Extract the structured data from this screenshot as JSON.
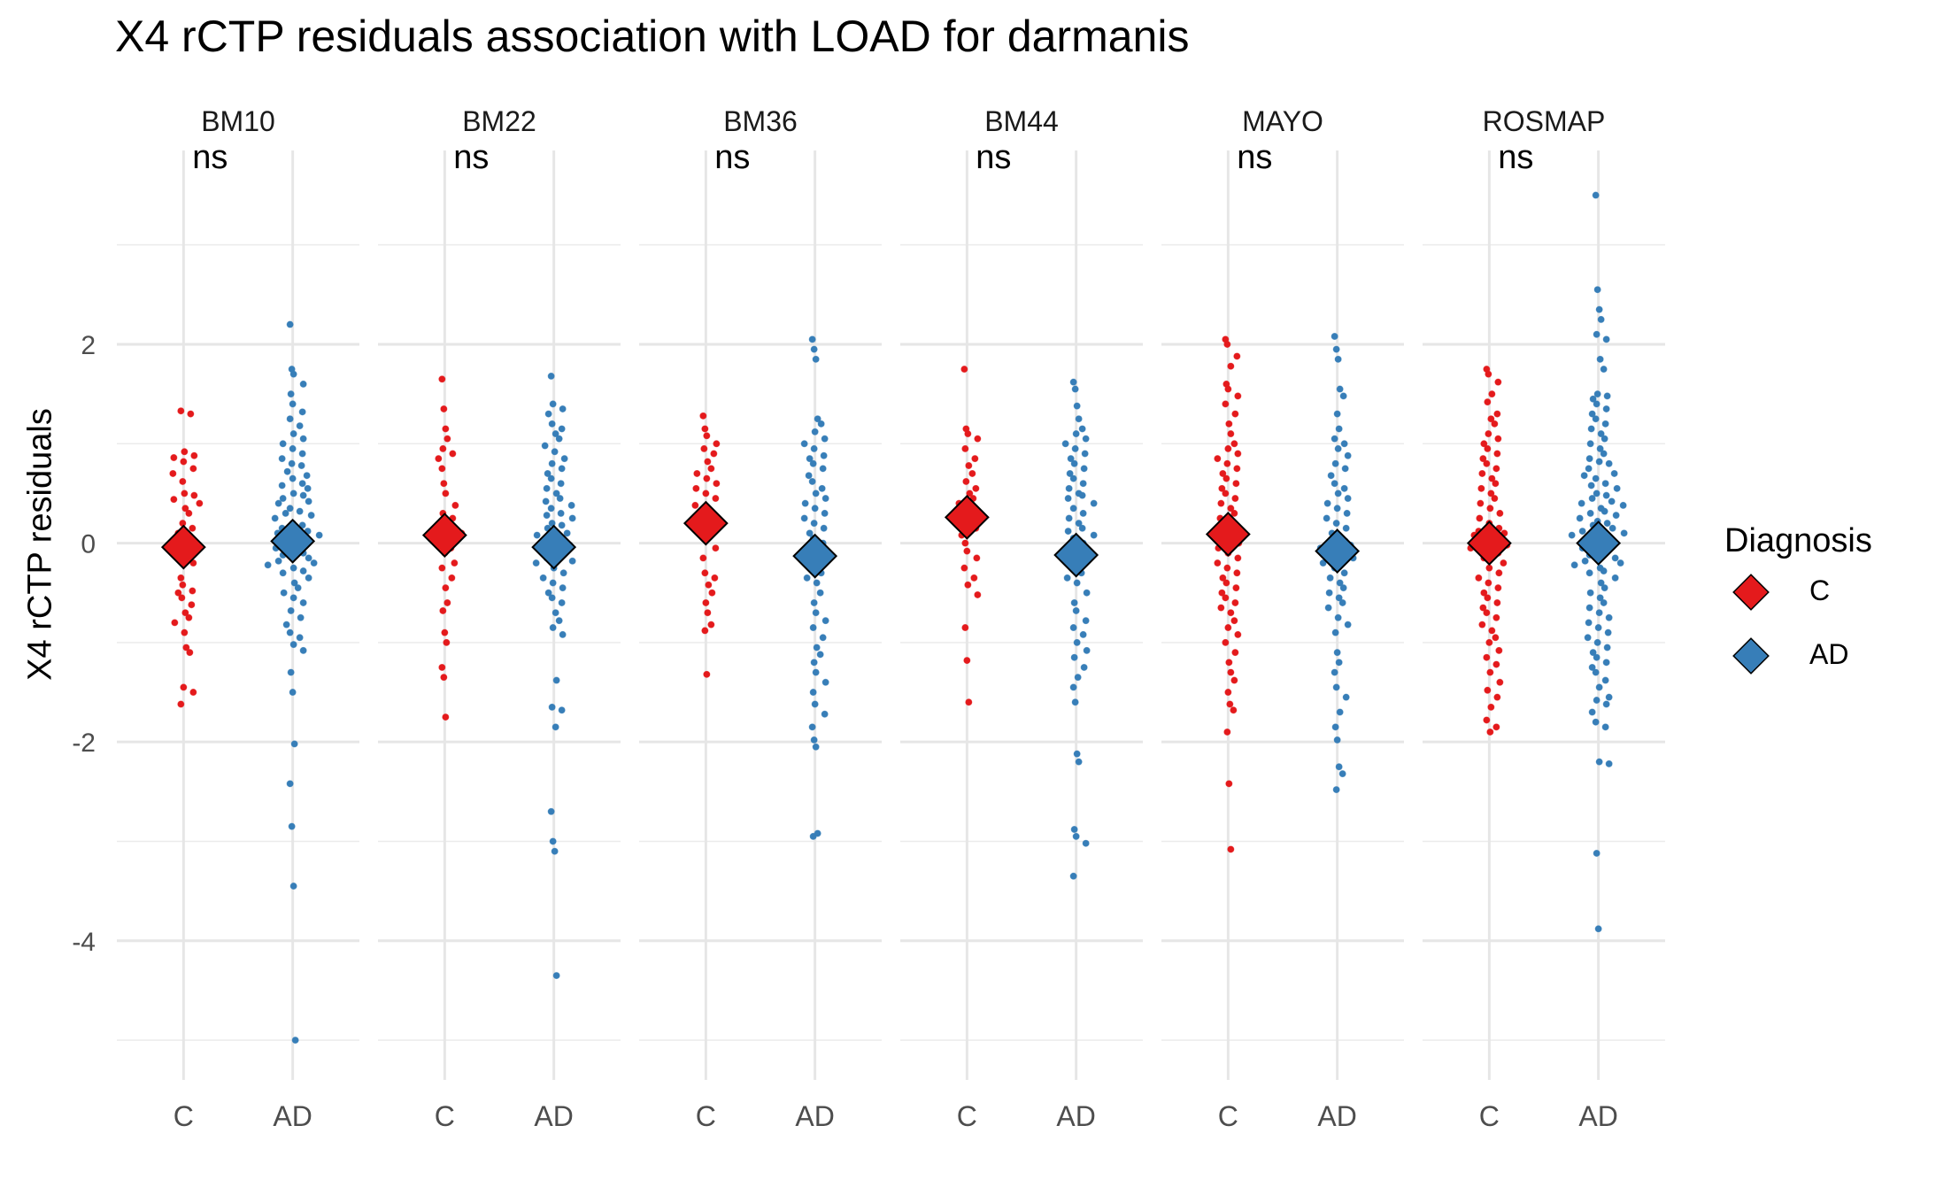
{
  "chart_data": {
    "type": "scatter",
    "title": "X4 rCTP residuals association with LOAD for darmanis",
    "ylabel": "X4 rCTP residuals",
    "ylim": [
      -5.4,
      3.95
    ],
    "yticks": [
      -4,
      -2,
      0,
      2
    ],
    "grid": true,
    "legend": {
      "title": "Diagnosis",
      "placement": "right"
    },
    "categories": [
      "C",
      "AD"
    ],
    "colors": {
      "C": "#E41A1C",
      "AD": "#377EB8"
    },
    "facets": [
      {
        "name": "BM10",
        "signif": "ns",
        "C": {
          "mean": -0.04,
          "points": [
            1.33,
            1.3,
            0.92,
            0.88,
            0.86,
            0.82,
            0.75,
            0.7,
            0.62,
            0.5,
            0.48,
            0.44,
            0.4,
            0.35,
            0.3,
            0.2,
            0.15,
            0.1,
            -0.05,
            -0.1,
            -0.2,
            -0.35,
            -0.42,
            -0.48,
            -0.5,
            -0.55,
            -0.62,
            -0.7,
            -0.75,
            -0.8,
            -0.9,
            -1.05,
            -1.1,
            -1.45,
            -1.5,
            -1.62
          ]
        },
        "AD": {
          "mean": 0.02,
          "points": [
            2.2,
            1.75,
            1.7,
            1.6,
            1.5,
            1.4,
            1.32,
            1.25,
            1.18,
            1.1,
            1.05,
            1.0,
            0.95,
            0.9,
            0.85,
            0.8,
            0.78,
            0.72,
            0.68,
            0.65,
            0.6,
            0.58,
            0.55,
            0.5,
            0.48,
            0.45,
            0.42,
            0.4,
            0.35,
            0.32,
            0.3,
            0.28,
            0.25,
            0.2,
            0.18,
            0.15,
            0.12,
            0.1,
            0.08,
            0.05,
            0.02,
            0.0,
            -0.02,
            -0.05,
            -0.08,
            -0.1,
            -0.12,
            -0.15,
            -0.18,
            -0.2,
            -0.22,
            -0.25,
            -0.28,
            -0.3,
            -0.35,
            -0.4,
            -0.45,
            -0.5,
            -0.55,
            -0.6,
            -0.68,
            -0.75,
            -0.82,
            -0.9,
            -0.95,
            -1.02,
            -1.08,
            -1.3,
            -1.5,
            -2.02,
            -2.42,
            -2.85,
            -3.45,
            -5.0
          ]
        }
      },
      {
        "name": "BM22",
        "signif": "ns",
        "C": {
          "mean": 0.08,
          "points": [
            1.65,
            1.35,
            1.15,
            1.05,
            0.95,
            0.9,
            0.85,
            0.75,
            0.6,
            0.5,
            0.38,
            0.3,
            0.25,
            0.22,
            0.18,
            0.15,
            0.1,
            0.05,
            -0.05,
            -0.1,
            -0.2,
            -0.25,
            -0.35,
            -0.45,
            -0.6,
            -0.68,
            -0.9,
            -1.0,
            -1.25,
            -1.35,
            -1.75
          ]
        },
        "AD": {
          "mean": -0.04,
          "points": [
            1.68,
            1.4,
            1.35,
            1.3,
            1.2,
            1.15,
            1.1,
            1.05,
            0.98,
            0.92,
            0.85,
            0.8,
            0.75,
            0.7,
            0.65,
            0.6,
            0.55,
            0.5,
            0.45,
            0.42,
            0.38,
            0.35,
            0.3,
            0.28,
            0.25,
            0.2,
            0.18,
            0.15,
            0.1,
            0.08,
            0.05,
            0.02,
            0.0,
            -0.02,
            -0.05,
            -0.08,
            -0.1,
            -0.15,
            -0.18,
            -0.2,
            -0.25,
            -0.3,
            -0.35,
            -0.4,
            -0.45,
            -0.5,
            -0.55,
            -0.6,
            -0.7,
            -0.78,
            -0.85,
            -0.92,
            -1.38,
            -1.65,
            -1.68,
            -1.85,
            -2.7,
            -3.0,
            -3.1,
            -4.35
          ]
        }
      },
      {
        "name": "BM36",
        "signif": "ns",
        "C": {
          "mean": 0.2,
          "points": [
            1.28,
            1.15,
            1.08,
            1.0,
            0.95,
            0.9,
            0.82,
            0.75,
            0.7,
            0.65,
            0.6,
            0.55,
            0.5,
            0.45,
            0.38,
            0.3,
            0.25,
            0.2,
            0.12,
            0.05,
            -0.05,
            -0.15,
            -0.3,
            -0.35,
            -0.42,
            -0.5,
            -0.6,
            -0.7,
            -0.82,
            -0.88,
            -1.32
          ]
        },
        "AD": {
          "mean": -0.13,
          "points": [
            2.05,
            1.95,
            1.85,
            1.25,
            1.2,
            1.12,
            1.05,
            1.0,
            0.95,
            0.88,
            0.85,
            0.8,
            0.75,
            0.68,
            0.62,
            0.55,
            0.5,
            0.45,
            0.4,
            0.35,
            0.3,
            0.25,
            0.2,
            0.15,
            0.1,
            0.05,
            0.0,
            -0.05,
            -0.1,
            -0.15,
            -0.2,
            -0.25,
            -0.3,
            -0.35,
            -0.4,
            -0.5,
            -0.6,
            -0.7,
            -0.78,
            -0.85,
            -0.95,
            -1.05,
            -1.12,
            -1.2,
            -1.3,
            -1.4,
            -1.5,
            -1.62,
            -1.72,
            -1.85,
            -1.98,
            -2.05,
            -2.92,
            -2.95
          ]
        }
      },
      {
        "name": "BM44",
        "signif": "ns",
        "C": {
          "mean": 0.26,
          "points": [
            1.75,
            1.15,
            1.1,
            1.05,
            0.95,
            0.85,
            0.78,
            0.7,
            0.62,
            0.55,
            0.5,
            0.45,
            0.4,
            0.35,
            0.3,
            0.22,
            0.15,
            0.08,
            0.0,
            -0.08,
            -0.15,
            -0.25,
            -0.35,
            -0.42,
            -0.52,
            -0.85,
            -1.18,
            -1.6
          ]
        },
        "AD": {
          "mean": -0.12,
          "points": [
            1.62,
            1.55,
            1.38,
            1.25,
            1.15,
            1.1,
            1.05,
            1.0,
            0.95,
            0.9,
            0.85,
            0.8,
            0.75,
            0.7,
            0.65,
            0.6,
            0.55,
            0.5,
            0.48,
            0.45,
            0.4,
            0.35,
            0.3,
            0.25,
            0.2,
            0.15,
            0.12,
            0.08,
            0.05,
            0.0,
            -0.05,
            -0.1,
            -0.15,
            -0.2,
            -0.25,
            -0.3,
            -0.35,
            -0.4,
            -0.5,
            -0.6,
            -0.68,
            -0.78,
            -0.85,
            -0.92,
            -1.0,
            -1.08,
            -1.15,
            -1.25,
            -1.35,
            -1.45,
            -1.6,
            -2.12,
            -2.2,
            -2.88,
            -2.95,
            -3.02,
            -3.35
          ]
        }
      },
      {
        "name": "MAYO",
        "signif": "ns",
        "C": {
          "mean": 0.09,
          "points": [
            2.05,
            2.0,
            1.88,
            1.78,
            1.6,
            1.55,
            1.48,
            1.4,
            1.3,
            1.2,
            1.1,
            1.0,
            0.95,
            0.9,
            0.85,
            0.8,
            0.75,
            0.7,
            0.65,
            0.6,
            0.55,
            0.5,
            0.45,
            0.4,
            0.35,
            0.3,
            0.25,
            0.2,
            0.15,
            0.1,
            0.05,
            0.0,
            -0.05,
            -0.1,
            -0.15,
            -0.2,
            -0.25,
            -0.3,
            -0.35,
            -0.4,
            -0.45,
            -0.5,
            -0.55,
            -0.6,
            -0.65,
            -0.7,
            -0.78,
            -0.85,
            -0.92,
            -1.0,
            -1.1,
            -1.2,
            -1.3,
            -1.38,
            -1.5,
            -1.62,
            -1.68,
            -1.9,
            -2.42,
            -3.08
          ]
        },
        "AD": {
          "mean": -0.08,
          "points": [
            2.08,
            1.95,
            1.85,
            1.55,
            1.48,
            1.3,
            1.15,
            1.05,
            1.0,
            0.95,
            0.88,
            0.8,
            0.75,
            0.68,
            0.6,
            0.55,
            0.5,
            0.45,
            0.4,
            0.35,
            0.3,
            0.25,
            0.2,
            0.15,
            0.1,
            0.05,
            0.02,
            0.0,
            -0.02,
            -0.05,
            -0.08,
            -0.1,
            -0.12,
            -0.15,
            -0.2,
            -0.25,
            -0.3,
            -0.35,
            -0.4,
            -0.45,
            -0.5,
            -0.55,
            -0.6,
            -0.65,
            -0.75,
            -0.82,
            -0.9,
            -1.1,
            -1.2,
            -1.3,
            -1.45,
            -1.55,
            -1.7,
            -1.85,
            -1.98,
            -2.25,
            -2.32,
            -2.48
          ]
        }
      },
      {
        "name": "ROSMAP",
        "signif": "ns",
        "C": {
          "mean": 0.0,
          "points": [
            1.75,
            1.7,
            1.62,
            1.5,
            1.42,
            1.3,
            1.25,
            1.2,
            1.1,
            1.05,
            1.0,
            0.95,
            0.9,
            0.85,
            0.8,
            0.75,
            0.7,
            0.65,
            0.6,
            0.55,
            0.5,
            0.45,
            0.4,
            0.35,
            0.3,
            0.25,
            0.2,
            0.15,
            0.12,
            0.1,
            0.08,
            0.05,
            0.02,
            0.0,
            -0.02,
            -0.05,
            -0.08,
            -0.1,
            -0.15,
            -0.2,
            -0.25,
            -0.3,
            -0.35,
            -0.4,
            -0.45,
            -0.5,
            -0.55,
            -0.6,
            -0.65,
            -0.7,
            -0.75,
            -0.82,
            -0.88,
            -0.95,
            -1.0,
            -1.08,
            -1.15,
            -1.22,
            -1.3,
            -1.4,
            -1.48,
            -1.55,
            -1.65,
            -1.78,
            -1.85,
            -1.9
          ]
        },
        "AD": {
          "mean": 0.0,
          "points": [
            3.5,
            2.55,
            2.35,
            2.25,
            2.1,
            2.05,
            1.85,
            1.75,
            1.5,
            1.48,
            1.45,
            1.4,
            1.35,
            1.3,
            1.25,
            1.2,
            1.15,
            1.1,
            1.05,
            1.0,
            0.95,
            0.9,
            0.85,
            0.82,
            0.8,
            0.75,
            0.7,
            0.68,
            0.65,
            0.6,
            0.58,
            0.55,
            0.5,
            0.48,
            0.45,
            0.42,
            0.4,
            0.38,
            0.35,
            0.32,
            0.3,
            0.28,
            0.25,
            0.22,
            0.2,
            0.18,
            0.15,
            0.12,
            0.1,
            0.08,
            0.05,
            0.02,
            0.0,
            -0.02,
            -0.05,
            -0.08,
            -0.1,
            -0.12,
            -0.15,
            -0.18,
            -0.2,
            -0.22,
            -0.25,
            -0.28,
            -0.3,
            -0.35,
            -0.4,
            -0.45,
            -0.5,
            -0.55,
            -0.6,
            -0.65,
            -0.7,
            -0.75,
            -0.8,
            -0.85,
            -0.9,
            -0.95,
            -1.0,
            -1.05,
            -1.1,
            -1.15,
            -1.2,
            -1.25,
            -1.3,
            -1.38,
            -1.45,
            -1.55,
            -1.58,
            -1.62,
            -1.7,
            -1.8,
            -1.85,
            -2.2,
            -2.22,
            -3.12,
            -3.88
          ]
        }
      }
    ]
  },
  "legend": {
    "title": "Diagnosis",
    "items": [
      {
        "label": "C",
        "color": "#E41A1C"
      },
      {
        "label": "AD",
        "color": "#377EB8"
      }
    ]
  }
}
